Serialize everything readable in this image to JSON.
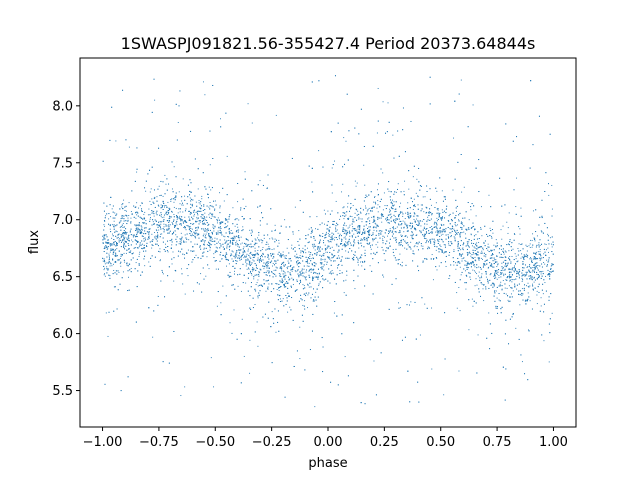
{
  "chart_data": {
    "type": "scatter",
    "title": "1SWASPJ091821.56-355427.4 Period 20373.64844s",
    "xlabel": "phase",
    "ylabel": "flux",
    "xlim": [
      -1.1,
      1.1
    ],
    "ylim": [
      5.18,
      8.42
    ],
    "x_ticks": [
      -1.0,
      -0.75,
      -0.5,
      -0.25,
      0.0,
      0.25,
      0.5,
      0.75,
      1.0
    ],
    "x_tick_labels": [
      "−1.00",
      "−0.75",
      "−0.50",
      "−0.25",
      "0.00",
      "0.25",
      "0.50",
      "0.75",
      "1.00"
    ],
    "y_ticks": [
      5.5,
      6.0,
      6.5,
      7.0,
      7.5,
      8.0
    ],
    "y_tick_labels": [
      "5.5",
      "6.0",
      "6.5",
      "7.0",
      "7.5",
      "8.0"
    ],
    "grid": false,
    "marker_color": "#1f77b4",
    "phase_range": [
      -1.0,
      1.0
    ],
    "trend": {
      "phase": [
        -1.0,
        -0.9,
        -0.8,
        -0.7,
        -0.6,
        -0.5,
        -0.4,
        -0.3,
        -0.2,
        -0.1,
        0.0,
        0.1,
        0.2,
        0.3,
        0.4,
        0.5,
        0.6,
        0.7,
        0.8,
        0.9,
        1.0
      ],
      "flux": [
        6.72,
        6.85,
        6.93,
        6.98,
        6.97,
        6.88,
        6.75,
        6.62,
        6.52,
        6.58,
        6.73,
        6.86,
        6.95,
        6.99,
        6.97,
        6.88,
        6.75,
        6.62,
        6.52,
        6.56,
        6.68
      ]
    },
    "core_spread": 0.15,
    "outlier_range": [
      5.35,
      8.3
    ]
  }
}
